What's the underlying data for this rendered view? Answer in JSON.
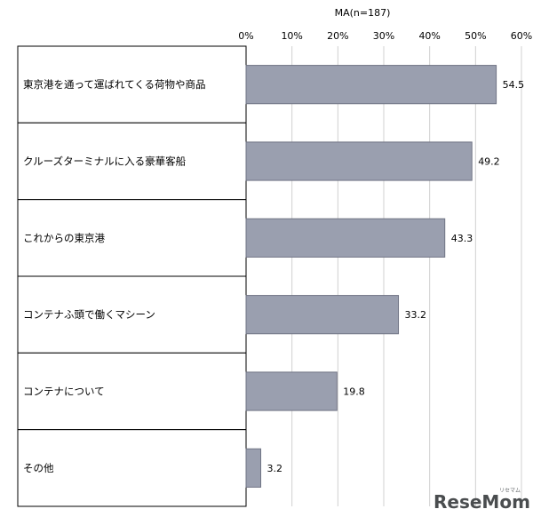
{
  "chart_data": {
    "type": "bar",
    "orientation": "horizontal",
    "note": "MA(n=187)",
    "categories": [
      "東京港を通って運ばれてくる荷物や商品",
      "クルーズターミナルに入る豪華客船",
      "これからの東京港",
      "コンテナふ頭で働くマシーン",
      "コンテナについて",
      "その他"
    ],
    "values": [
      54.5,
      49.2,
      43.3,
      33.2,
      19.8,
      3.2
    ],
    "value_labels": [
      "54.5",
      "49.2",
      "43.3",
      "33.2",
      "19.8",
      "3.2"
    ],
    "xlim": [
      0,
      60
    ],
    "xticks": [
      "0%",
      "10%",
      "20%",
      "30%",
      "40%",
      "50%",
      "60%"
    ],
    "xtick_values": [
      0,
      10,
      20,
      30,
      40,
      50,
      60
    ],
    "grid": true,
    "bar_color": "#9a9faf",
    "legend": "none"
  },
  "watermark": {
    "text": "ReseMom",
    "subtext": "リセマム"
  }
}
